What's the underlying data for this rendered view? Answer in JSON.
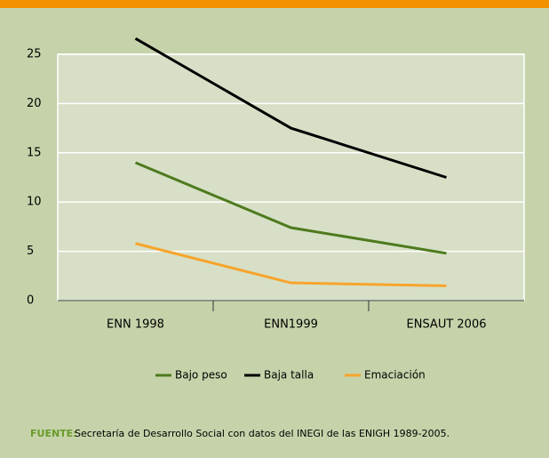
{
  "chart_data": {
    "type": "line",
    "categories": [
      "ENN 1998",
      "ENN1999",
      "ENSAUT 2006"
    ],
    "series": [
      {
        "name": "Bajo peso",
        "color": "#4e7a1e",
        "values": [
          14.0,
          7.4,
          4.8
        ]
      },
      {
        "name": "Baja talla",
        "color": "#000000",
        "values": [
          26.6,
          17.5,
          12.5
        ]
      },
      {
        "name": "Emaciación",
        "color": "#f7a42c",
        "values": [
          5.8,
          1.8,
          1.5
        ]
      }
    ],
    "ylim": [
      0,
      25
    ],
    "yticks": [
      0,
      5,
      10,
      15,
      20,
      25
    ],
    "grid": true,
    "legend": "bottom",
    "source_label": "FUENTE:",
    "source_text": "Secretaría de Desarrollo Social con datos del INEGI de las ENIGH 1989-2005."
  }
}
